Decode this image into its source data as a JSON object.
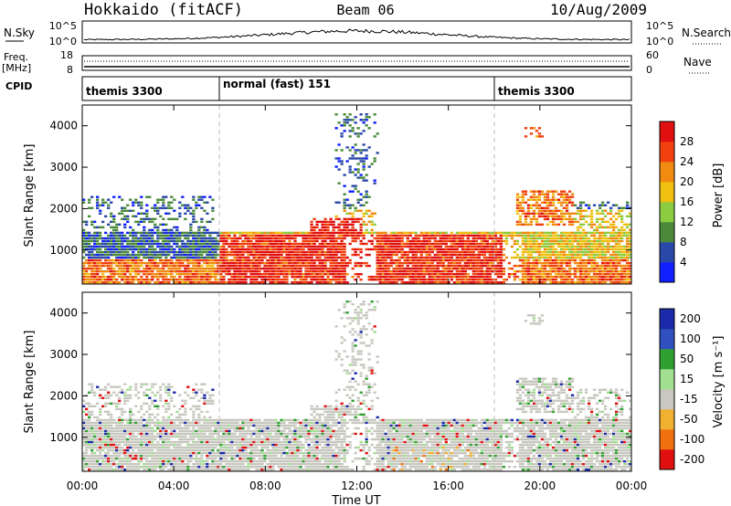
{
  "header": {
    "station": "Hokkaido (fitACF)",
    "beam": "Beam 06",
    "date": "10/Aug/2009"
  },
  "strips": {
    "nsky": {
      "label": "N.Sky",
      "left_ticks": [
        "10^5",
        "10^0"
      ],
      "right_ticks": [
        "10^5",
        "10^0"
      ],
      "right_label": "N.Search"
    },
    "freq": {
      "label": "Freq.",
      "unit": "[MHz]",
      "left_ticks": [
        "18",
        "8"
      ],
      "right_ticks": [
        "60",
        "0"
      ],
      "right_label": "Nave"
    },
    "cpid": {
      "label": "CPID",
      "segments": [
        {
          "start_hour": 0,
          "text": "themis 3300"
        },
        {
          "start_hour": 6,
          "text": "normal (fast) 151"
        },
        {
          "start_hour": 18,
          "text": "themis 3300"
        }
      ]
    }
  },
  "chart_data": [
    {
      "type": "heatmap",
      "title": "",
      "ylabel": "Slant Range [km]",
      "xlabel": "",
      "ylim": [
        180,
        4500
      ],
      "xlim_hours": [
        0,
        24
      ],
      "yticks": [
        1000,
        2000,
        3000,
        4000
      ],
      "xticks": [
        "00:00",
        "04:00",
        "08:00",
        "12:00",
        "16:00",
        "20:00",
        "00:00"
      ],
      "colorbar": {
        "label": "Power [dB]",
        "ticks": [
          "4",
          "8",
          "12",
          "16",
          "20",
          "24",
          "28"
        ],
        "colors": [
          "#1020ff",
          "#2a48a8",
          "#4a8a3a",
          "#8ccc40",
          "#f0c010",
          "#f08a10",
          "#f04010",
          "#e01010"
        ]
      }
    },
    {
      "type": "heatmap",
      "title": "",
      "ylabel": "Slant Range [km]",
      "xlabel": "Time UT",
      "ylim": [
        180,
        4500
      ],
      "xlim_hours": [
        0,
        24
      ],
      "yticks": [
        1000,
        2000,
        3000,
        4000
      ],
      "xticks": [
        "00:00",
        "04:00",
        "08:00",
        "12:00",
        "16:00",
        "20:00",
        "00:00"
      ],
      "colorbar": {
        "label": "Velocity [m s⁻¹]",
        "ticks": [
          "200",
          "100",
          "50",
          "15",
          "-15",
          "-50",
          "-100",
          "-200"
        ],
        "colors": [
          "#1a2aa8",
          "#3050c0",
          "#30a030",
          "#a0e090",
          "#c8c8c0",
          "#f0b030",
          "#f07010",
          "#e01010"
        ]
      }
    }
  ]
}
